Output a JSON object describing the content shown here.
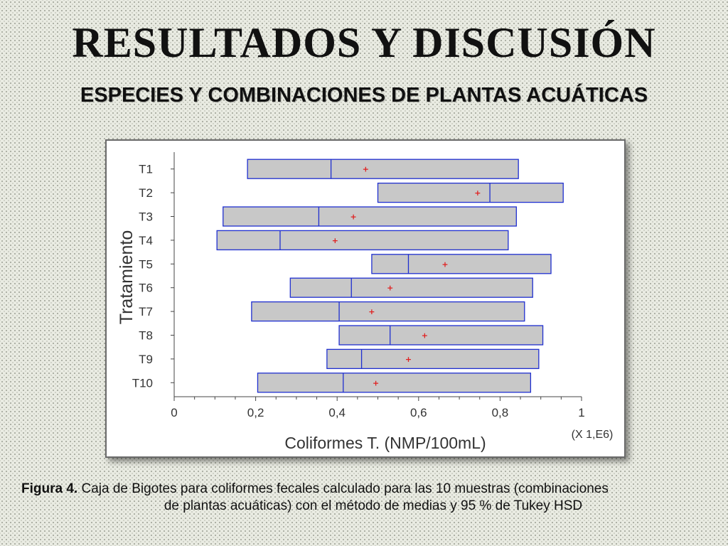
{
  "header": {
    "title": "RESULTADOS Y DISCUSIÓN",
    "subtitle": "ESPECIES Y COMBINACIONES DE PLANTAS ACUÁTICAS"
  },
  "caption": {
    "label": "Figura 4.",
    "line1": "Caja de Bigotes para coliformes fecales calculado para las 10 muestras (combinaciones",
    "line2": "de plantas acuáticas) con el método de medias y 95 % de Tukey HSD"
  },
  "chart_data": {
    "type": "box",
    "orientation": "horizontal",
    "xlabel": "Coliformes T. (NMP/100mL)",
    "ylabel": "Tratamiento",
    "x_multiplier": "(X 1,E6)",
    "xlim": [
      0,
      1
    ],
    "xticks": [
      "0",
      "0,2",
      "0,4",
      "0,6",
      "0,8",
      "1"
    ],
    "grid": false,
    "box_color": "#c8c8c8",
    "box_edge_color": "#1f2fd0",
    "mean_marker_color": "#e02020",
    "categories": [
      "T1",
      "T2",
      "T3",
      "T4",
      "T5",
      "T6",
      "T7",
      "T8",
      "T9",
      "T10"
    ],
    "boxes": [
      {
        "q1": 0.18,
        "median": 0.385,
        "q3": 0.845,
        "mean": 0.47
      },
      {
        "q1": 0.5,
        "median": 0.775,
        "q3": 0.955,
        "mean": 0.745
      },
      {
        "q1": 0.12,
        "median": 0.355,
        "q3": 0.84,
        "mean": 0.44
      },
      {
        "q1": 0.105,
        "median": 0.26,
        "q3": 0.82,
        "mean": 0.395
      },
      {
        "q1": 0.485,
        "median": 0.575,
        "q3": 0.925,
        "mean": 0.665
      },
      {
        "q1": 0.285,
        "median": 0.435,
        "q3": 0.88,
        "mean": 0.53
      },
      {
        "q1": 0.19,
        "median": 0.405,
        "q3": 0.86,
        "mean": 0.485
      },
      {
        "q1": 0.405,
        "median": 0.53,
        "q3": 0.905,
        "mean": 0.615
      },
      {
        "q1": 0.375,
        "median": 0.46,
        "q3": 0.895,
        "mean": 0.575
      },
      {
        "q1": 0.205,
        "median": 0.415,
        "q3": 0.875,
        "mean": 0.495
      }
    ]
  }
}
